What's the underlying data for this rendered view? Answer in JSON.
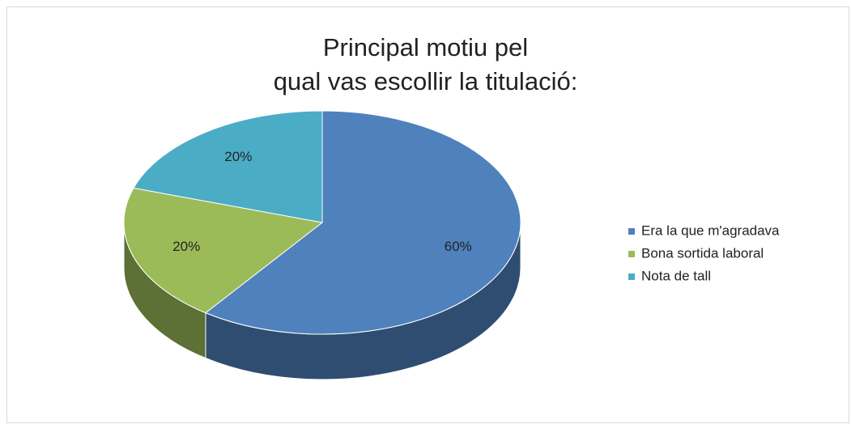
{
  "chart_data": {
    "type": "pie",
    "title": "Principal motiu pel\nqual vas escollir la titulació:",
    "categories": [
      "Era la que m'agradava",
      "Bona sortida laboral",
      "Nota de tall"
    ],
    "values": [
      60,
      20,
      20
    ],
    "value_labels": [
      "60%",
      "20%",
      "20%"
    ],
    "colors": [
      "#4f81bd",
      "#9bbb59",
      "#4bacc6"
    ],
    "legend": "right"
  }
}
